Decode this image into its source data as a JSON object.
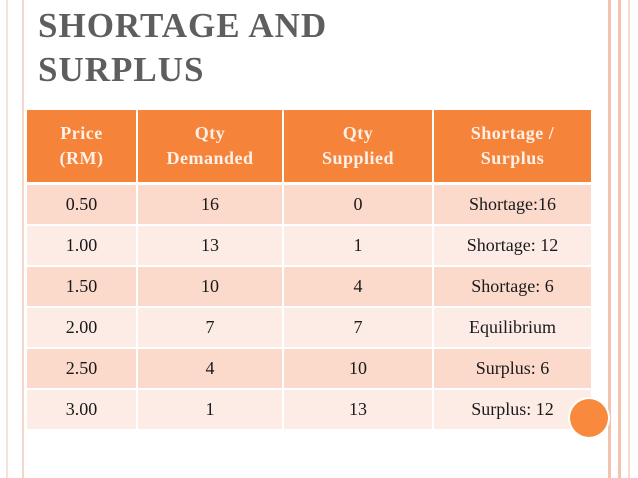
{
  "title": {
    "line1": "SHORTAGE AND",
    "line2": "SURPLUS"
  },
  "table": {
    "headers": [
      {
        "line1": "Price",
        "line2": "(RM)"
      },
      {
        "line1": "Qty",
        "line2": "Demanded"
      },
      {
        "line1": "Qty",
        "line2": "Supplied"
      },
      {
        "line1": "Shortage /",
        "line2": "Surplus"
      }
    ],
    "rows": [
      [
        "0.50",
        "16",
        "0",
        "Shortage:16"
      ],
      [
        "1.00",
        "13",
        "1",
        "Shortage: 12"
      ],
      [
        "1.50",
        "10",
        "4",
        "Shortage: 6"
      ],
      [
        "2.00",
        "7",
        "7",
        "Equilibrium"
      ],
      [
        "2.50",
        "4",
        "10",
        "Surplus: 6"
      ],
      [
        "3.00",
        "1",
        "13",
        "Surplus: 12"
      ]
    ]
  },
  "colors": {
    "accent": "#f5833a",
    "row_dark": "#fbd9cb",
    "row_light": "#fdece6",
    "title": "#5e5e5e"
  }
}
